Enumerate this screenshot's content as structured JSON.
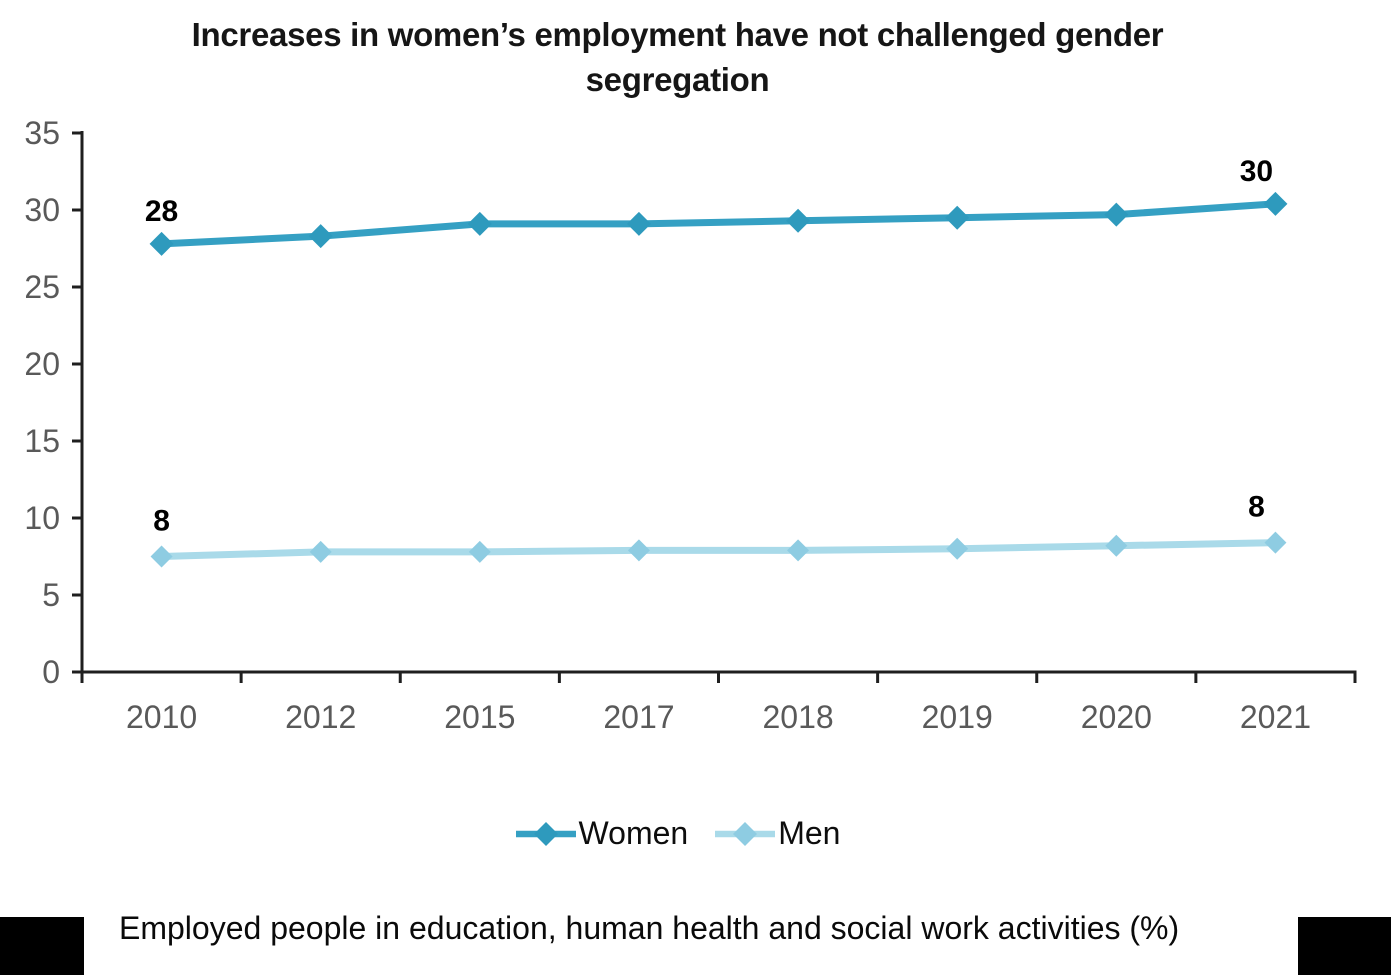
{
  "title": {
    "line1": "Increases in women’s employment have not challenged gender",
    "line2": "segregation"
  },
  "caption": "Employed people in education, human health and social work activities (%)",
  "colors": {
    "women": "#35A0C3",
    "women_marker": "#2E9ABD",
    "men": "#A9DAE9",
    "men_marker": "#8ECCE2",
    "axis": "#1F1F1F",
    "tick_label": "#595959",
    "data_label": "#000000",
    "footer_block": "#000000"
  },
  "chart_data": {
    "type": "line",
    "title": "Increases in women’s employment have not challenged gender segregation",
    "xlabel": "",
    "ylabel": "",
    "categories": [
      "2010",
      "2012",
      "2015",
      "2017",
      "2018",
      "2019",
      "2020",
      "2021"
    ],
    "series": [
      {
        "name": "Women",
        "color": "#35A0C3",
        "marker_color": "#2E9ABD",
        "values": [
          27.8,
          28.3,
          29.1,
          29.1,
          29.3,
          29.5,
          29.7,
          30.4
        ],
        "labels": [
          {
            "index": 0,
            "text": "28"
          },
          {
            "index": 7,
            "text": "30"
          }
        ]
      },
      {
        "name": "Men",
        "color": "#A9DAE9",
        "marker_color": "#8ECCE2",
        "values": [
          7.5,
          7.8,
          7.8,
          7.9,
          7.9,
          8.0,
          8.2,
          8.4
        ],
        "labels": [
          {
            "index": 0,
            "text": "8"
          },
          {
            "index": 7,
            "text": "8"
          }
        ]
      }
    ],
    "ylim": [
      0,
      35
    ],
    "ytick_step": 5,
    "yticks": [
      0,
      5,
      10,
      15,
      20,
      25,
      30,
      35
    ],
    "grid": false,
    "marker": "diamond",
    "legend_position": "bottom"
  }
}
